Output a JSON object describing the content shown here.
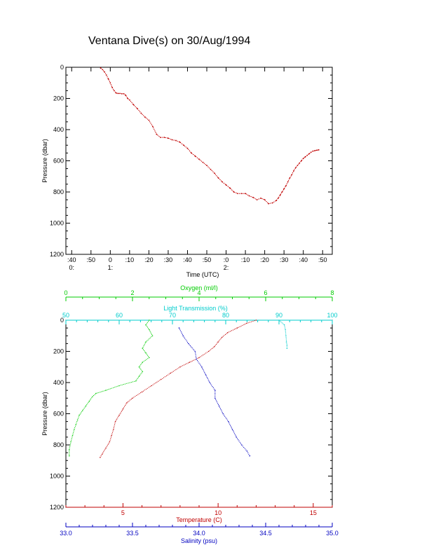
{
  "page": {
    "title": "Ventana Dive(s) on 30/Aug/1994"
  },
  "chart_data": [
    {
      "type": "line",
      "xlabel": "Time (UTC)",
      "ylabel": "Pressure (dbar)",
      "x_ticks": [
        {
          "value": -20,
          "label": ":40",
          "label2": "0:"
        },
        {
          "value": -10,
          "label": ":50",
          "label2": ""
        },
        {
          "value": 0,
          "label": "0",
          "label2": "1:"
        },
        {
          "value": 10,
          "label": ":10",
          "label2": ""
        },
        {
          "value": 20,
          "label": ":20",
          "label2": ""
        },
        {
          "value": 30,
          "label": ":30",
          "label2": ""
        },
        {
          "value": 40,
          "label": ":40",
          "label2": ""
        },
        {
          "value": 50,
          "label": ":50",
          "label2": ""
        },
        {
          "value": 60,
          "label": ":0",
          "label2": "2:"
        },
        {
          "value": 70,
          "label": ":10",
          "label2": ""
        },
        {
          "value": 80,
          "label": ":20",
          "label2": ""
        },
        {
          "value": 90,
          "label": ":30",
          "label2": ""
        },
        {
          "value": 100,
          "label": ":40",
          "label2": ""
        },
        {
          "value": 110,
          "label": ":50",
          "label2": ""
        }
      ],
      "xlim": [
        -23,
        115
      ],
      "ylim": [
        1200,
        0
      ],
      "y_ticks": [
        0,
        200,
        400,
        600,
        800,
        1000,
        1200
      ],
      "series": [
        {
          "color": "#c00000",
          "x": [
            -5,
            -4,
            -3,
            -2,
            -1,
            0,
            1,
            2,
            3,
            4,
            5,
            6,
            7,
            8,
            9,
            10,
            12,
            14,
            16,
            18,
            20,
            22,
            24,
            26,
            28,
            30,
            32,
            34,
            36,
            38,
            40,
            42,
            44,
            46,
            48,
            50,
            52,
            54,
            56,
            58,
            60,
            62,
            64,
            66,
            68,
            70,
            72,
            74,
            76,
            78,
            80,
            82,
            84,
            86,
            87,
            88,
            89,
            90,
            91,
            92,
            93,
            94,
            95,
            96,
            97,
            98,
            99,
            100,
            101,
            102,
            103,
            104,
            105,
            106,
            107,
            108
          ],
          "y": [
            5,
            15,
            30,
            50,
            75,
            100,
            130,
            150,
            165,
            168,
            168,
            170,
            170,
            180,
            200,
            210,
            240,
            265,
            295,
            320,
            340,
            380,
            430,
            450,
            450,
            455,
            465,
            470,
            480,
            500,
            520,
            550,
            570,
            590,
            610,
            630,
            655,
            680,
            710,
            735,
            755,
            775,
            800,
            810,
            810,
            810,
            825,
            835,
            850,
            840,
            850,
            875,
            870,
            855,
            840,
            820,
            800,
            780,
            760,
            735,
            710,
            690,
            665,
            645,
            630,
            615,
            600,
            585,
            575,
            565,
            555,
            545,
            538,
            535,
            532,
            530
          ]
        }
      ]
    },
    {
      "type": "scatter",
      "ylabel": "Pressure (dbar)",
      "ylim": [
        1200,
        0
      ],
      "y_ticks": [
        0,
        200,
        400,
        600,
        800,
        1000,
        1200
      ],
      "axes": {
        "oxygen": {
          "label": "Oxygen (ml/l)",
          "range": [
            0,
            8
          ],
          "ticks": [
            0,
            2,
            4,
            6,
            8
          ],
          "color": "#00cc00"
        },
        "light": {
          "label": "Light Transmission (%)",
          "range": [
            50,
            100
          ],
          "ticks": [
            50,
            60,
            70,
            80,
            90,
            100
          ],
          "color": "#00cccc"
        },
        "temperature": {
          "label": "Temperature (C)",
          "range": [
            2.0,
            16.0
          ],
          "ticks": [
            5,
            10,
            15
          ],
          "color": "#c00000"
        },
        "salinity": {
          "label": "Salinity (psu)",
          "range": [
            33.0,
            35.0
          ],
          "ticks": [
            "33.0",
            "33.5",
            "34.0",
            "34.5",
            "35.0"
          ],
          "color": "#0000c0"
        }
      },
      "series": [
        {
          "variable": "oxygen",
          "color": "#00cc00",
          "points": [
            [
              2.5,
              0
            ],
            [
              2.4,
              30
            ],
            [
              2.5,
              60
            ],
            [
              2.6,
              100
            ],
            [
              2.4,
              140
            ],
            [
              2.3,
              180
            ],
            [
              2.4,
              210
            ],
            [
              2.5,
              240
            ],
            [
              2.3,
              270
            ],
            [
              2.2,
              300
            ],
            [
              2.3,
              330
            ],
            [
              2.2,
              360
            ],
            [
              2.1,
              390
            ],
            [
              1.6,
              420
            ],
            [
              1.2,
              450
            ],
            [
              0.9,
              470
            ],
            [
              0.8,
              490
            ],
            [
              0.7,
              520
            ],
            [
              0.6,
              550
            ],
            [
              0.5,
              580
            ],
            [
              0.4,
              610
            ],
            [
              0.35,
              640
            ],
            [
              0.3,
              670
            ],
            [
              0.25,
              700
            ],
            [
              0.2,
              740
            ],
            [
              0.15,
              780
            ],
            [
              0.1,
              830
            ],
            [
              0.1,
              870
            ]
          ]
        },
        {
          "variable": "light",
          "color": "#00cccc",
          "points": [
            [
              90.0,
              0
            ],
            [
              91.0,
              30
            ],
            [
              91.2,
              60
            ],
            [
              91.3,
              100
            ],
            [
              91.4,
              140
            ],
            [
              91.5,
              160
            ],
            [
              91.5,
              180
            ]
          ]
        },
        {
          "variable": "temperature",
          "color": "#c00000",
          "points": [
            [
              12.0,
              0
            ],
            [
              11.5,
              20
            ],
            [
              11.0,
              50
            ],
            [
              10.5,
              80
            ],
            [
              10.2,
              110
            ],
            [
              10.0,
              140
            ],
            [
              9.8,
              170
            ],
            [
              9.5,
              200
            ],
            [
              9.0,
              240
            ],
            [
              8.5,
              270
            ],
            [
              8.0,
              300
            ],
            [
              7.5,
              340
            ],
            [
              7.0,
              380
            ],
            [
              6.5,
              420
            ],
            [
              6.0,
              460
            ],
            [
              5.5,
              500
            ],
            [
              5.2,
              530
            ],
            [
              5.0,
              570
            ],
            [
              4.8,
              610
            ],
            [
              4.6,
              650
            ],
            [
              4.5,
              700
            ],
            [
              4.4,
              740
            ],
            [
              4.3,
              780
            ],
            [
              4.1,
              820
            ],
            [
              3.9,
              860
            ],
            [
              3.8,
              880
            ]
          ]
        },
        {
          "variable": "salinity",
          "color": "#0000c0",
          "points": [
            [
              33.85,
              50
            ],
            [
              33.88,
              100
            ],
            [
              33.92,
              150
            ],
            [
              33.97,
              200
            ],
            [
              33.98,
              250
            ],
            [
              34.02,
              300
            ],
            [
              34.05,
              350
            ],
            [
              34.08,
              400
            ],
            [
              34.12,
              450
            ],
            [
              34.12,
              500
            ],
            [
              34.15,
              550
            ],
            [
              34.18,
              600
            ],
            [
              34.22,
              650
            ],
            [
              34.25,
              700
            ],
            [
              34.28,
              750
            ],
            [
              34.32,
              800
            ],
            [
              34.36,
              840
            ],
            [
              34.38,
              870
            ]
          ]
        }
      ]
    }
  ]
}
